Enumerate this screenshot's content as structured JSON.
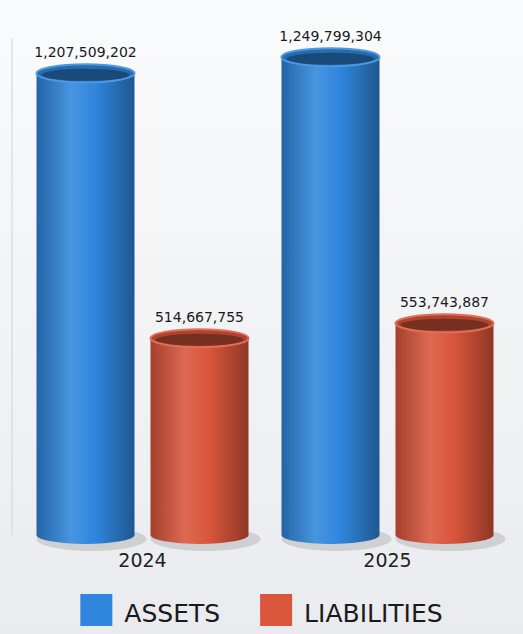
{
  "chart_data": {
    "type": "bar",
    "categories": [
      "2024",
      "2025"
    ],
    "series": [
      {
        "name": "ASSETS",
        "color": "#2f86dc",
        "values": [
          1207509202,
          1249799304
        ],
        "value_labels": [
          "1,207,509,202",
          "1,249,799,304"
        ]
      },
      {
        "name": "LIABILITIES",
        "color": "#d9553b",
        "values": [
          514667755,
          553743887
        ],
        "value_labels": [
          "514,667,755",
          "553,743,887"
        ]
      }
    ],
    "ylim": [
      0,
      1300000000
    ],
    "grid": false,
    "legend": "bottom",
    "data_labels": true,
    "tick_labels": "x"
  }
}
